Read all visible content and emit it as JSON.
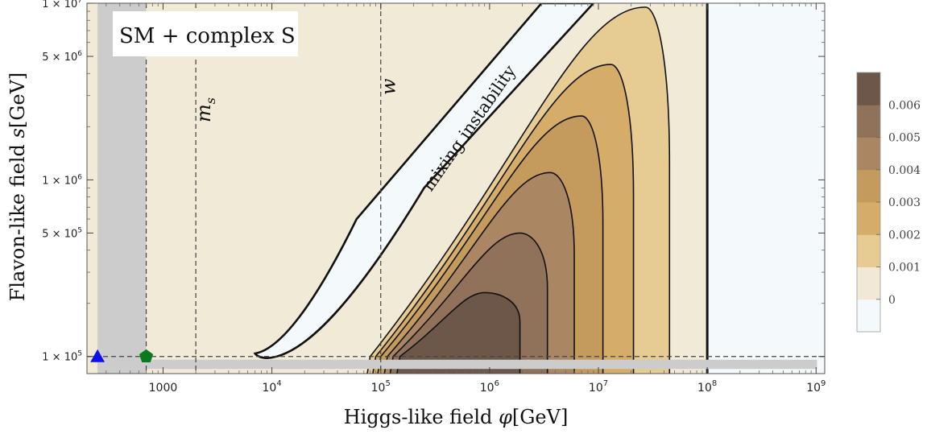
{
  "chart_data": {
    "type": "contour",
    "xscale": "log",
    "yscale": "log",
    "xlabel_prefix": "Higgs-like field ",
    "xlabel_symbol": "φ",
    "xlabel_unit": "[GeV]",
    "ylabel_prefix": "Flavon-like field ",
    "ylabel_symbol": "s",
    "ylabel_unit": "[GeV]",
    "xlim": [
      200,
      1200000000.0
    ],
    "ylim": [
      80000,
      10000000.0
    ],
    "x_ticks": [
      {
        "value": 1000,
        "label": "1000"
      },
      {
        "value": 10000,
        "label": "10",
        "exp": "4"
      },
      {
        "value": 100000,
        "label": "10",
        "exp": "5"
      },
      {
        "value": 1000000,
        "label": "10",
        "exp": "6"
      },
      {
        "value": 10000000,
        "label": "10",
        "exp": "7"
      },
      {
        "value": 100000000,
        "label": "10",
        "exp": "8"
      },
      {
        "value": 1000000000,
        "label": "10",
        "exp": "9"
      }
    ],
    "y_ticks": [
      {
        "value": 100000,
        "label": "1 × 10",
        "exp": "5"
      },
      {
        "value": 500000,
        "label": "5 × 10",
        "exp": "5"
      },
      {
        "value": 1000000,
        "label": "1 × 10",
        "exp": "6"
      },
      {
        "value": 5000000,
        "label": "5 × 10",
        "exp": "6"
      },
      {
        "value": 10000000,
        "label": "1 × 10",
        "exp": "7"
      }
    ],
    "legend_title": "SM + complex S",
    "vertical_markers": [
      {
        "value": 700,
        "label": ""
      },
      {
        "value": 2000,
        "label_main": "m",
        "label_sub": "s"
      },
      {
        "value": 100000,
        "label_main": "w",
        "label_sub": ""
      }
    ],
    "horizontal_marker": 100000,
    "annotation": "mixing instability",
    "colorbar": {
      "levels": [
        "0",
        "0.001",
        "0.002",
        "0.003",
        "0.004",
        "0.005",
        "0.006"
      ],
      "colors": [
        "#f4fafc",
        "#f1e9d6",
        "#e6cc92",
        "#d5ad68",
        "#c59b5d",
        "#aa8762",
        "#8f7259",
        "#6c5749"
      ]
    },
    "regions": {
      "excluded_color": "#cccccc",
      "background_color": "#f1ead6",
      "stable_color": "#f4fafc"
    },
    "points": [
      {
        "name": "triangle",
        "x": 250,
        "y": 100000,
        "color": "#1010ee"
      },
      {
        "name": "pentagon",
        "x": 700,
        "y": 100000,
        "color": "#0b7a1e"
      }
    ],
    "contours": [
      {
        "level": "0",
        "shape": "vertical boundary",
        "x": 100000000
      },
      {
        "level": "0.001",
        "peak_x": 27000000,
        "peak_y": 9500000,
        "left_x_at_floor": 80000,
        "right_x": 45000000
      },
      {
        "level": "0.002",
        "peak_x": 13000000,
        "peak_y": 4500000,
        "left_x_at_floor": 90000,
        "right_x": 21000000
      },
      {
        "level": "0.003",
        "peak_x": 7000000,
        "peak_y": 2300000,
        "left_x_at_floor": 100000,
        "right_x": 11000000
      },
      {
        "level": "0.004",
        "peak_x": 3600000,
        "peak_y": 1100000,
        "left_x_at_floor": 115000,
        "right_x": 6000000
      },
      {
        "level": "0.005",
        "peak_x": 1900000,
        "peak_y": 500000,
        "left_x_at_floor": 130000,
        "right_x": 3400000
      },
      {
        "level": "0.006",
        "peak_x": 900000,
        "peak_y": 230000,
        "left_x_at_floor": 150000,
        "right_x": 1900000
      }
    ]
  }
}
